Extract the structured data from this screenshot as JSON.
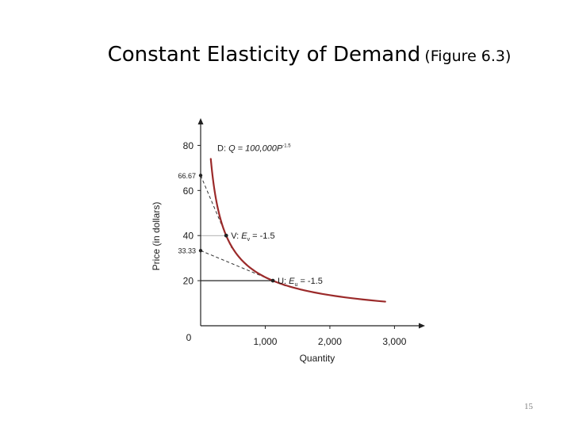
{
  "slide": {
    "title": "Constant Elasticity of Demand",
    "figure_ref": "(Figure 6.3)",
    "page_number": "15"
  },
  "chart_data": {
    "type": "line",
    "xlabel": "Quantity",
    "ylabel": "Price (in dollars)",
    "xlim": [
      0,
      3400
    ],
    "ylim": [
      0,
      90
    ],
    "x_ticks": [
      1000,
      2000,
      3000
    ],
    "x_tick_labels": [
      "1,000",
      "2,000",
      "3,000"
    ],
    "y_ticks": [
      20,
      40,
      60,
      80
    ],
    "y_tick_labels": [
      "20",
      "40",
      "60",
      "80"
    ],
    "origin_label": "0",
    "curve_color": "#9b2a2a",
    "series": [
      {
        "name": "D",
        "label_prefix": "D:",
        "label_formula": "Q = 100,000P",
        "label_exponent": "-1.5",
        "p_range": [
          10.7,
          74
        ]
      }
    ],
    "points": [
      {
        "name": "V",
        "label_prefix": "V:",
        "label_e": "E",
        "label_sub": "v",
        "label_value": "= -1.5",
        "q": 395.3,
        "p": 40
      },
      {
        "name": "U",
        "label_prefix": "U:",
        "label_e": "E",
        "label_sub": "u",
        "label_value": "= -1.5",
        "q": 1118,
        "p": 20
      }
    ],
    "tangents": [
      {
        "p_intercept": 66.67,
        "intercept_label": "66.67",
        "q_at_point": 395.3,
        "p_at_point": 40
      },
      {
        "p_intercept": 33.33,
        "intercept_label": "33.33",
        "q_at_point": 1118,
        "p_at_point": 20
      }
    ]
  }
}
